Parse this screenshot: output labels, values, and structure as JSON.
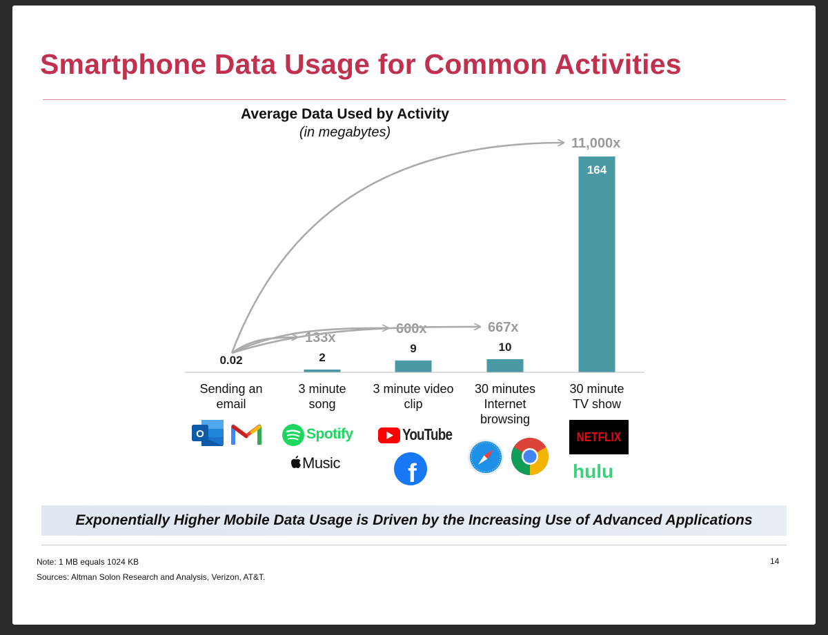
{
  "slide": {
    "title": "Smartphone Data Usage for Common Activities",
    "banner": "Exponentially Higher Mobile Data Usage is Driven by the Increasing Use of Advanced Applications",
    "note": "Note: 1 MB equals 1024 KB",
    "sources": "Sources: Altman Solon Research and Analysis, Verizon, AT&T.",
    "page_number": "14"
  },
  "chart_data": {
    "type": "bar",
    "title": "Average Data Used by Activity",
    "subtitle": "(in megabytes)",
    "categories": [
      "Sending an email",
      "3 minute song",
      "3 minute video clip",
      "30 minutes Internet browsing",
      "30 minute TV show"
    ],
    "category_lines": [
      [
        "Sending an",
        "email"
      ],
      [
        "3 minute",
        "song"
      ],
      [
        "3 minute video",
        "clip"
      ],
      [
        "30 minutes",
        "Internet",
        "browsing"
      ],
      [
        "30 minute",
        "TV show"
      ]
    ],
    "values": [
      0.02,
      2,
      9,
      10,
      164
    ],
    "value_labels": [
      "0.02",
      "2",
      "9",
      "10",
      "164"
    ],
    "ylim": [
      0,
      164
    ],
    "bar_color": "#4a9aa5",
    "multipliers": [
      {
        "label": "133x",
        "from": 0,
        "to": 1
      },
      {
        "label": "600x",
        "from": 0,
        "to": 2
      },
      {
        "label": "667x",
        "from": 0,
        "to": 3
      },
      {
        "label": "11,000x",
        "from": 0,
        "to": 4
      }
    ],
    "arrow_color": "#ababab",
    "grid": false,
    "legend": "none"
  },
  "logos": {
    "spotify": "Spotify",
    "music": "Music",
    "youtube": "YouTube",
    "netflix": "NETFLIX",
    "hulu": "hulu",
    "outlook_letter": "O",
    "facebook_letter": "f",
    "icons": [
      "outlook-icon",
      "gmail-icon",
      "spotify-icon",
      "apple-icon",
      "youtube-icon",
      "facebook-icon",
      "safari-icon",
      "chrome-icon"
    ]
  }
}
